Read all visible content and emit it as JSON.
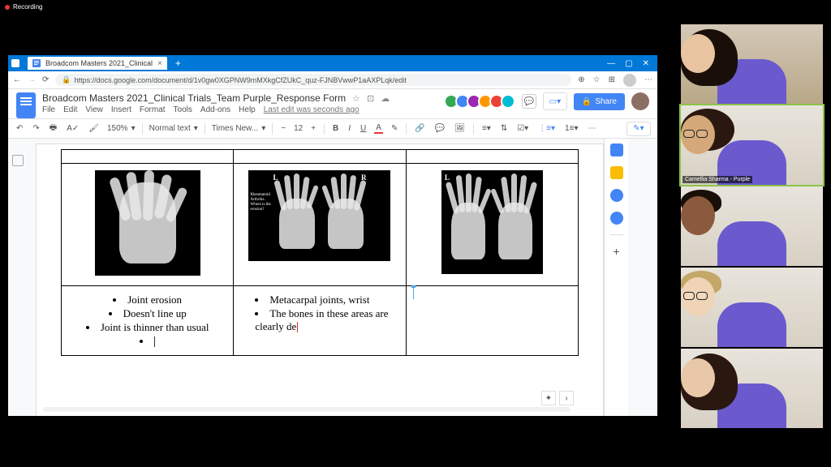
{
  "recording": {
    "label": "Recording"
  },
  "browser": {
    "tab_title": "Broadcom Masters 2021_Clinical",
    "url": "https://docs.google.com/document/d/1v0gw0XGPNW9mMXkgCfZUkC_quz-FJNBVwwP1aAXPLqk/edit"
  },
  "docs": {
    "title": "Broadcom Masters 2021_Clinical Trials_Team Purple_Response Form",
    "menu": [
      "File",
      "Edit",
      "View",
      "Insert",
      "Format",
      "Tools",
      "Add-ons",
      "Help"
    ],
    "last_edit": "Last edit was seconds ago",
    "share": "Share",
    "presence_colors": [
      "#34a853",
      "#4285f4",
      "#9c27b0",
      "#ff9800",
      "#ea4335",
      "#00bcd4"
    ],
    "toolbar": {
      "zoom": "150%",
      "style": "Normal text",
      "font": "Times New...",
      "size": "12"
    }
  },
  "table": {
    "row1": {
      "cell2_labels": {
        "left": "L",
        "right": "R",
        "text": "Rheumatoid\nArthritis.\nWhere is the\nerosion?"
      },
      "cell3_label": "L"
    },
    "row2": {
      "cell1": [
        "Joint erosion",
        "Doesn't line up",
        "Joint is thinner than usual"
      ],
      "cell2": [
        "Metacarpal joints, wrist",
        "The bones in these areas are clearly de"
      ]
    }
  },
  "participants": [
    {
      "name": "",
      "bg": "bg-room",
      "hair": "#1a0f08",
      "skin": "#e8c4a0",
      "hair_style": "long"
    },
    {
      "name": "Camellia Sharma - Purple",
      "bg": "bg-light",
      "hair": "#2a1810",
      "skin": "#d4a878",
      "glasses": true,
      "speaking": true,
      "hair_style": "curly"
    },
    {
      "name": "",
      "bg": "bg-light",
      "hair": "#1a0f08",
      "skin": "#8b5a3c",
      "hair_style": "short"
    },
    {
      "name": "",
      "bg": "bg-light",
      "hair": "#c4a868",
      "skin": "#f0d4b8",
      "glasses": true,
      "hair_style": "short"
    },
    {
      "name": "",
      "bg": "bg-light",
      "hair": "#2a1810",
      "skin": "#e8c8a8",
      "hair_style": "long"
    }
  ]
}
